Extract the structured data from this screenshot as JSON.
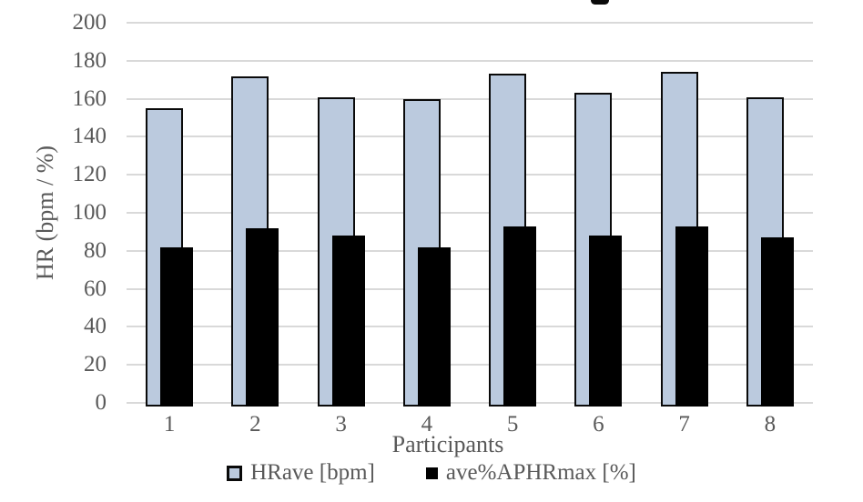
{
  "chart_data": {
    "type": "bar",
    "categories": [
      "1",
      "2",
      "3",
      "4",
      "5",
      "6",
      "7",
      "8"
    ],
    "series": [
      {
        "name": "HRave [bpm]",
        "fill": "#bbcade",
        "border": "#0a0a0a",
        "values": [
          155,
          172,
          161,
          160,
          173,
          163,
          174,
          161
        ]
      },
      {
        "name": "ave%APHRmax [%]",
        "fill": "#000000",
        "border": "#000000",
        "values": [
          82,
          92,
          88,
          82,
          93,
          88,
          93,
          87
        ]
      }
    ],
    "title": "",
    "xlabel": "Participants",
    "ylabel": "HR (bpm / %)",
    "ylim": [
      0,
      200
    ],
    "yticks": [
      0,
      20,
      40,
      60,
      80,
      100,
      120,
      140,
      160,
      180,
      200
    ],
    "grid": true,
    "legend_position": "bottom",
    "colors": {
      "gridline": "#d9d9d9",
      "text": "#595959",
      "background": "#ffffff"
    }
  }
}
